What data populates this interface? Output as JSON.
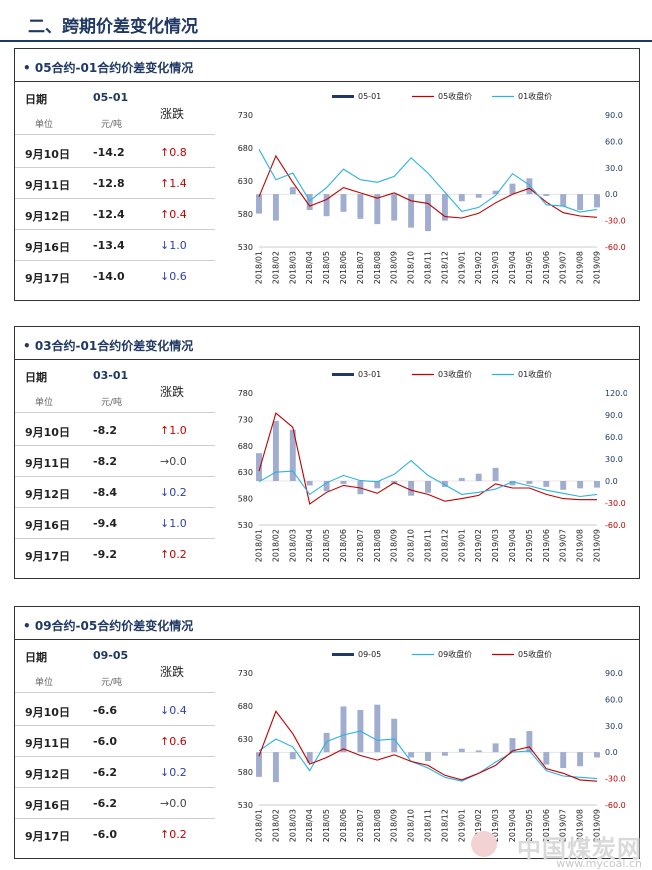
{
  "page_title": "二、跨期价差变化情况",
  "sections": [
    {
      "title": "• 05合约-01合约价差变化情况",
      "table": {
        "col_date": "日期",
        "col_spread": "05-01",
        "col_change": "涨跌",
        "unit_label": "单位",
        "unit_value": "元/吨",
        "rows": [
          {
            "date": "9月10日",
            "spread": "-14.2",
            "dir": "up",
            "arrow": "↑",
            "change": "0.8"
          },
          {
            "date": "9月11日",
            "spread": "-12.8",
            "dir": "up",
            "arrow": "↑",
            "change": "1.4"
          },
          {
            "date": "9月12日",
            "spread": "-12.4",
            "dir": "up",
            "arrow": "↑",
            "change": "0.4"
          },
          {
            "date": "9月16日",
            "spread": "-13.4",
            "dir": "down",
            "arrow": "↓",
            "change": "1.0"
          },
          {
            "date": "9月17日",
            "spread": "-14.0",
            "dir": "down",
            "arrow": "↓",
            "change": "0.6"
          }
        ]
      }
    },
    {
      "title": "• 03合约-01合约价差变化情况",
      "table": {
        "col_date": "日期",
        "col_spread": "03-01",
        "col_change": "涨跌",
        "unit_label": "单位",
        "unit_value": "元/吨",
        "rows": [
          {
            "date": "9月10日",
            "spread": "-8.2",
            "dir": "up",
            "arrow": "↑",
            "change": "1.0"
          },
          {
            "date": "9月11日",
            "spread": "-8.2",
            "dir": "flat",
            "arrow": "→",
            "change": "0.0"
          },
          {
            "date": "9月12日",
            "spread": "-8.4",
            "dir": "down",
            "arrow": "↓",
            "change": "0.2"
          },
          {
            "date": "9月16日",
            "spread": "-9.4",
            "dir": "down",
            "arrow": "↓",
            "change": "1.0"
          },
          {
            "date": "9月17日",
            "spread": "-9.2",
            "dir": "up",
            "arrow": "↑",
            "change": "0.2"
          }
        ]
      }
    },
    {
      "title": "• 09合约-05合约价差变化情况",
      "table": {
        "col_date": "日期",
        "col_spread": "09-05",
        "col_change": "涨跌",
        "unit_label": "单位",
        "unit_value": "元/吨",
        "rows": [
          {
            "date": "9月10日",
            "spread": "-6.6",
            "dir": "down",
            "arrow": "↓",
            "change": "0.4"
          },
          {
            "date": "9月11日",
            "spread": "-6.0",
            "dir": "up",
            "arrow": "↑",
            "change": "0.6"
          },
          {
            "date": "9月12日",
            "spread": "-6.2",
            "dir": "down",
            "arrow": "↓",
            "change": "0.2"
          },
          {
            "date": "9月16日",
            "spread": "-6.2",
            "dir": "flat",
            "arrow": "→",
            "change": "0.0"
          },
          {
            "date": "9月17日",
            "spread": "-6.0",
            "dir": "up",
            "arrow": "↑",
            "change": "0.2"
          }
        ]
      }
    }
  ],
  "chart_data": [
    {
      "type": "line",
      "x": [
        "2018/01",
        "2018/02",
        "2018/03",
        "2018/04",
        "2018/05",
        "2018/06",
        "2018/07",
        "2018/08",
        "2018/09",
        "2018/10",
        "2018/11",
        "2018/12",
        "2019/01",
        "2019/02",
        "2019/03",
        "2019/04",
        "2019/05",
        "2019/06",
        "2019/07",
        "2019/08",
        "2019/09"
      ],
      "left_axis": {
        "ylim": [
          530,
          730
        ],
        "ticks": [
          "530",
          "580",
          "630",
          "680",
          "730"
        ]
      },
      "right_axis": {
        "ylim": [
          -60,
          90
        ],
        "ticks": [
          "90.0",
          "60.0",
          "30.0",
          "0.0",
          "-30.0",
          "-60.0"
        ]
      },
      "bar_series": {
        "name": "05-01",
        "axis": "right",
        "color": "#1f3864",
        "values": [
          -22,
          -30,
          8,
          -18,
          -25,
          -20,
          -28,
          -34,
          -30,
          -38,
          -42,
          -30,
          -8,
          -4,
          4,
          12,
          18,
          -2,
          -14,
          -18,
          -15
        ]
      },
      "series": [
        {
          "name": "05收盘价",
          "axis": "left",
          "color": "#c00000",
          "values": [
            606,
            668,
            628,
            592,
            602,
            620,
            612,
            604,
            612,
            600,
            596,
            576,
            574,
            581,
            597,
            610,
            619,
            598,
            582,
            577,
            575
          ]
        },
        {
          "name": "01收盘价",
          "axis": "left",
          "color": "#2bb2e0",
          "values": [
            678,
            632,
            642,
            600,
            620,
            648,
            632,
            628,
            637,
            665,
            642,
            613,
            584,
            590,
            608,
            641,
            624,
            594,
            592,
            583,
            587
          ]
        }
      ]
    },
    {
      "type": "line",
      "x": [
        "2018/01",
        "2018/02",
        "2018/03",
        "2018/04",
        "2018/05",
        "2018/06",
        "2018/07",
        "2018/08",
        "2018/09",
        "2018/10",
        "2018/11",
        "2018/12",
        "2019/01",
        "2019/02",
        "2019/03",
        "2019/04",
        "2019/05",
        "2019/06",
        "2019/07",
        "2019/08",
        "2019/09"
      ],
      "left_axis": {
        "ylim": [
          530,
          780
        ],
        "ticks": [
          "530",
          "580",
          "630",
          "680",
          "730",
          "780"
        ]
      },
      "right_axis": {
        "ylim": [
          -60,
          120
        ],
        "ticks": [
          "120.0",
          "90.0",
          "60.0",
          "30.0",
          "0.0",
          "-30.0",
          "-60.0"
        ]
      },
      "bar_series": {
        "name": "03-01",
        "axis": "right",
        "color": "#1f3864",
        "values": [
          38,
          82,
          70,
          -6,
          -14,
          -4,
          -18,
          -10,
          -4,
          -20,
          -16,
          -8,
          4,
          10,
          18,
          -6,
          -4,
          -8,
          -12,
          -10,
          -9
        ]
      },
      "series": [
        {
          "name": "03收盘价",
          "axis": "left",
          "color": "#c00000",
          "values": [
            632,
            742,
            715,
            570,
            592,
            605,
            600,
            590,
            610,
            596,
            588,
            575,
            580,
            586,
            608,
            600,
            600,
            588,
            580,
            578,
            578
          ]
        },
        {
          "name": "01收盘价",
          "axis": "left",
          "color": "#2bb2e0",
          "values": [
            612,
            630,
            632,
            588,
            610,
            624,
            614,
            612,
            626,
            652,
            624,
            606,
            588,
            592,
            598,
            612,
            604,
            596,
            590,
            584,
            588
          ]
        }
      ]
    },
    {
      "type": "line",
      "x": [
        "2018/01",
        "2018/02",
        "2018/03",
        "2018/04",
        "2018/05",
        "2018/06",
        "2018/07",
        "2018/08",
        "2018/09",
        "2018/10",
        "2018/11",
        "2018/12",
        "2019/01",
        "2019/02",
        "2019/03",
        "2019/04",
        "2019/05",
        "2019/06",
        "2019/07",
        "2019/08",
        "2019/09"
      ],
      "left_axis": {
        "ylim": [
          530,
          730
        ],
        "ticks": [
          "530",
          "580",
          "630",
          "680",
          "730"
        ]
      },
      "right_axis": {
        "ylim": [
          -60,
          90
        ],
        "ticks": [
          "90.0",
          "60.0",
          "30.0",
          "0.0",
          "-30.0",
          "-60.0"
        ]
      },
      "bar_series": {
        "name": "09-05",
        "axis": "right",
        "color": "#1f3864",
        "values": [
          -28,
          -34,
          -8,
          -12,
          22,
          52,
          48,
          54,
          38,
          -6,
          -10,
          -4,
          4,
          2,
          10,
          16,
          24,
          -14,
          -18,
          -16,
          -6
        ]
      },
      "series": [
        {
          "name": "09收盘价",
          "axis": "left",
          "color": "#2bb2e0",
          "values": [
            612,
            630,
            618,
            582,
            626,
            636,
            642,
            628,
            630,
            596,
            586,
            572,
            566,
            578,
            595,
            610,
            612,
            582,
            574,
            572,
            570
          ]
        },
        {
          "name": "05收盘价",
          "axis": "left",
          "color": "#c00000",
          "values": [
            604,
            672,
            638,
            592,
            602,
            615,
            605,
            598,
            606,
            596,
            590,
            575,
            568,
            578,
            590,
            612,
            618,
            585,
            578,
            568,
            566
          ]
        }
      ]
    }
  ],
  "watermark": {
    "main": "中国煤炭网",
    "url": "www.mycoal.cn"
  }
}
